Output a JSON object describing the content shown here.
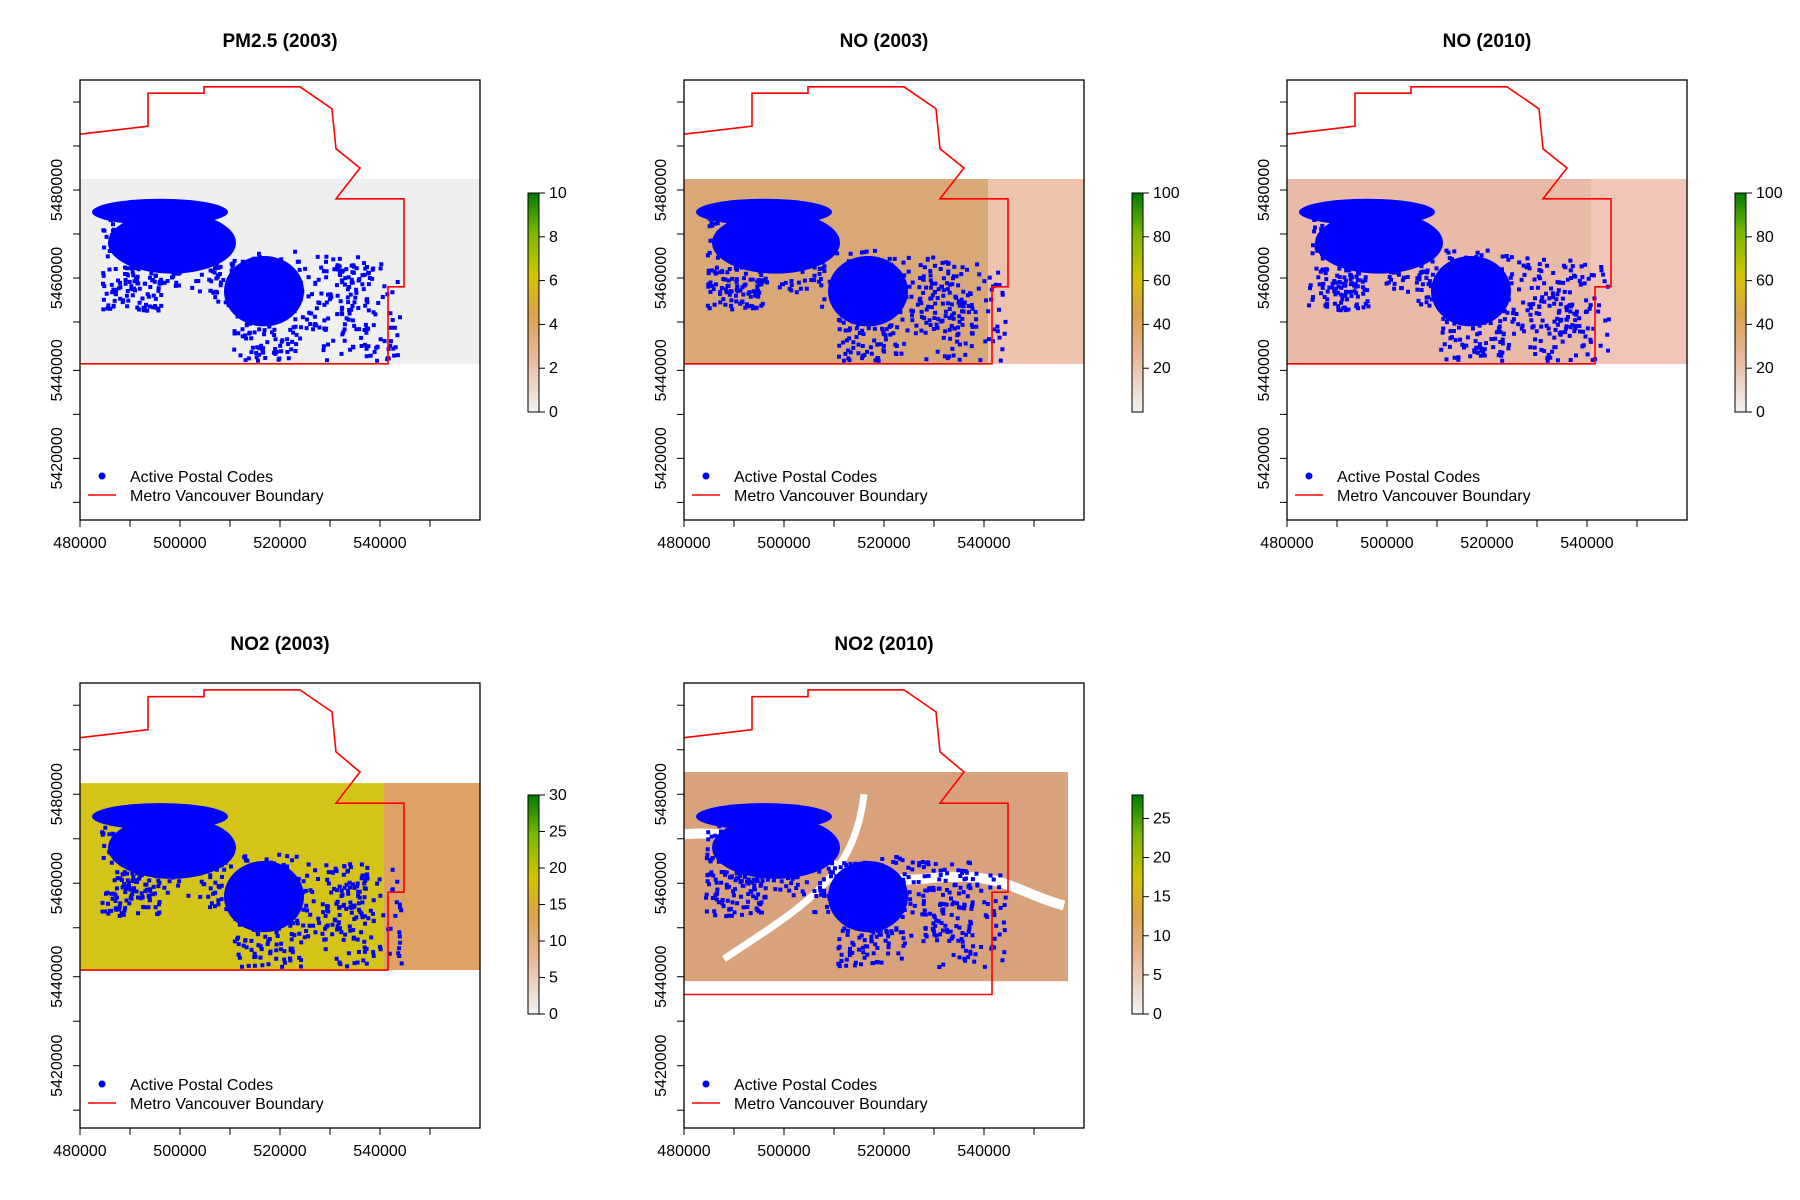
{
  "figure": {
    "x_ticks": [
      "480000",
      "500000",
      "520000",
      "540000"
    ],
    "y_ticks": [
      "5420000",
      "5440000",
      "5460000",
      "5480000"
    ],
    "legend": {
      "points_label": "Active Postal Codes",
      "line_label": "Metro Vancouver Boundary"
    },
    "colors": {
      "points": "#0000ff",
      "boundary": "#ff0000",
      "low": "#f0f0f0",
      "mid_orange": "#d2a060",
      "mid_yellow": "#cccc00",
      "high": "#008000"
    }
  },
  "panels": [
    {
      "id": "pm25-2003",
      "title": "PM2.5 (2003)",
      "colorbar_ticks": [
        "0",
        "2",
        "4",
        "6",
        "8",
        "10"
      ],
      "scale_max": 10
    },
    {
      "id": "no-2003",
      "title": "NO (2003)",
      "colorbar_ticks": [
        "20",
        "40",
        "60",
        "80",
        "100"
      ],
      "scale_max": 100
    },
    {
      "id": "no-2010",
      "title": "NO (2010)",
      "colorbar_ticks": [
        "0",
        "20",
        "40",
        "60",
        "80",
        "100"
      ],
      "scale_max": 100
    },
    {
      "id": "no2-2003",
      "title": "NO2 (2003)",
      "colorbar_ticks": [
        "0",
        "5",
        "10",
        "15",
        "20",
        "25",
        "30"
      ],
      "scale_max": 30
    },
    {
      "id": "no2-2010",
      "title": "NO2 (2010)",
      "colorbar_ticks": [
        "0",
        "5",
        "10",
        "15",
        "20",
        "25"
      ],
      "scale_max": 28
    }
  ]
}
